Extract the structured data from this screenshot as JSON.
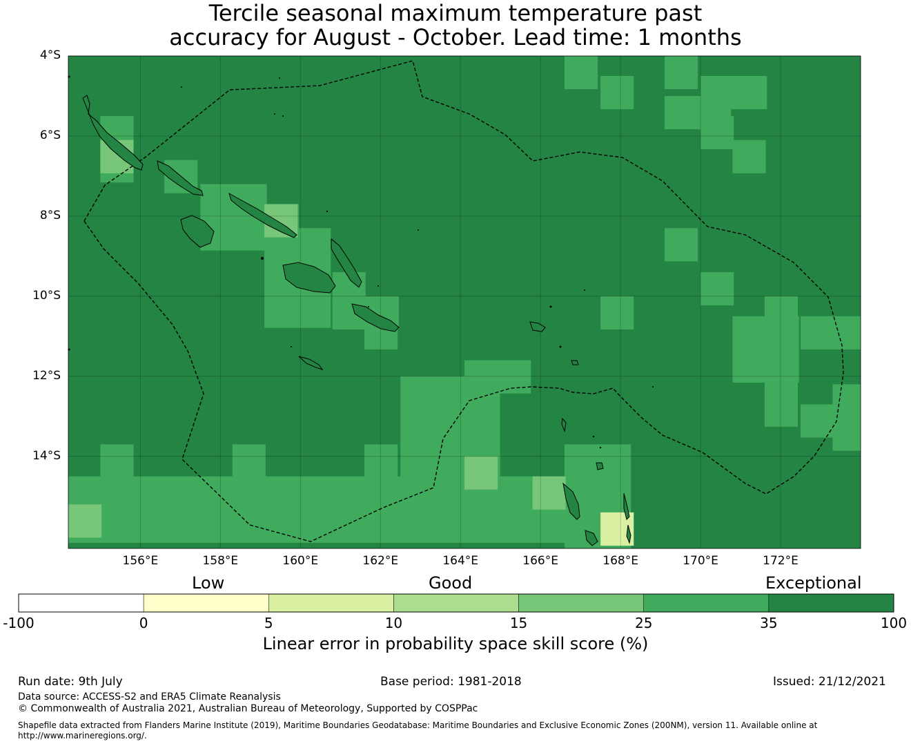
{
  "title": {
    "line1": "Tercile seasonal maximum temperature past",
    "line2": "accuracy for August - October. Lead time: 1 months"
  },
  "map": {
    "lat_labels": [
      "4°S",
      "6°S",
      "8°S",
      "10°S",
      "12°S",
      "14°S"
    ],
    "lon_labels": [
      "156°E",
      "158°E",
      "160°E",
      "162°E",
      "164°E",
      "166°E",
      "168°E",
      "170°E",
      "172°E"
    ],
    "extent": {
      "lon_min": 154.2,
      "lon_max": 174.0,
      "lat_min": -16.3,
      "lat_max": -4.0
    },
    "grid_step_deg": 2,
    "cell_size_deg": 0.83,
    "base_category": "35-100",
    "colors": {
      "-100-0": "#ffffff",
      "0-5": "#ffffcc",
      "5-10": "#d9f0a3",
      "10-15": "#addd8e",
      "15-25": "#78c679",
      "25-35": "#41ab5d",
      "35-100": "#238443"
    },
    "patches": [
      {
        "lon": 154.2,
        "lat": -14.5,
        "w": 14,
        "h": 2,
        "cat": "25-35"
      },
      {
        "lon": 155.0,
        "lat": -13.7,
        "w": 1,
        "h": 1,
        "cat": "25-35"
      },
      {
        "lon": 158.3,
        "lat": -13.7,
        "w": 1,
        "h": 1,
        "cat": "25-35"
      },
      {
        "lon": 161.6,
        "lat": -13.7,
        "w": 1,
        "h": 1,
        "cat": "25-35"
      },
      {
        "lon": 163.3,
        "lat": -13.7,
        "w": 1,
        "h": 1,
        "cat": "25-35"
      },
      {
        "lon": 162.5,
        "lat": -12.0,
        "w": 3,
        "h": 4,
        "cat": "25-35"
      },
      {
        "lon": 164.1,
        "lat": -11.6,
        "w": 2,
        "h": 1,
        "cat": "25-35"
      },
      {
        "lon": 165.8,
        "lat": -14.5,
        "w": 2,
        "h": 2,
        "cat": "25-35"
      },
      {
        "lon": 166.6,
        "lat": -13.7,
        "w": 2,
        "h": 4,
        "cat": "25-35"
      },
      {
        "lon": 155.0,
        "lat": -5.5,
        "w": 1,
        "h": 2,
        "cat": "25-35"
      },
      {
        "lon": 156.6,
        "lat": -6.6,
        "w": 1,
        "h": 1,
        "cat": "25-35"
      },
      {
        "lon": 157.5,
        "lat": -7.2,
        "w": 2,
        "h": 2,
        "cat": "25-35"
      },
      {
        "lon": 158.3,
        "lat": -7.7,
        "w": 2,
        "h": 1,
        "cat": "25-35"
      },
      {
        "lon": 159.1,
        "lat": -8.3,
        "w": 2,
        "h": 3,
        "cat": "25-35"
      },
      {
        "lon": 160.8,
        "lat": -9.4,
        "w": 1,
        "h": 1,
        "cat": "25-35"
      },
      {
        "lon": 160.8,
        "lat": -10.0,
        "w": 2,
        "h": 1,
        "cat": "25-35"
      },
      {
        "lon": 161.6,
        "lat": -10.5,
        "w": 1,
        "h": 1,
        "cat": "25-35"
      },
      {
        "lon": 166.6,
        "lat": -4.0,
        "w": 1,
        "h": 1,
        "cat": "25-35"
      },
      {
        "lon": 167.5,
        "lat": -4.5,
        "w": 1,
        "h": 1,
        "cat": "25-35"
      },
      {
        "lon": 169.1,
        "lat": -4.0,
        "w": 1,
        "h": 1,
        "cat": "25-35"
      },
      {
        "lon": 170.0,
        "lat": -4.5,
        "w": 2,
        "h": 1,
        "cat": "25-35"
      },
      {
        "lon": 169.1,
        "lat": -5.0,
        "w": 2,
        "h": 1,
        "cat": "25-35"
      },
      {
        "lon": 170.0,
        "lat": -5.5,
        "w": 1,
        "h": 1,
        "cat": "25-35"
      },
      {
        "lon": 170.8,
        "lat": -6.1,
        "w": 1,
        "h": 1,
        "cat": "25-35"
      },
      {
        "lon": 169.1,
        "lat": -8.3,
        "w": 1,
        "h": 1,
        "cat": "25-35"
      },
      {
        "lon": 170.0,
        "lat": -9.4,
        "w": 1,
        "h": 1,
        "cat": "25-35"
      },
      {
        "lon": 167.5,
        "lat": -10.0,
        "w": 1,
        "h": 1,
        "cat": "25-35"
      },
      {
        "lon": 171.6,
        "lat": -10.0,
        "w": 1,
        "h": 1,
        "cat": "25-35"
      },
      {
        "lon": 170.8,
        "lat": -10.5,
        "w": 2,
        "h": 2,
        "cat": "25-35"
      },
      {
        "lon": 172.5,
        "lat": -10.5,
        "w": 2,
        "h": 1,
        "cat": "25-35"
      },
      {
        "lon": 171.6,
        "lat": -11.6,
        "w": 1,
        "h": 2,
        "cat": "25-35"
      },
      {
        "lon": 173.3,
        "lat": -12.2,
        "w": 1,
        "h": 2,
        "cat": "25-35"
      },
      {
        "lon": 172.5,
        "lat": -12.7,
        "w": 1,
        "h": 1,
        "cat": "25-35"
      },
      {
        "lon": 155.0,
        "lat": -6.1,
        "w": 1,
        "h": 1,
        "cat": "15-25"
      },
      {
        "lon": 159.1,
        "lat": -7.7,
        "w": 1,
        "h": 1,
        "cat": "15-25"
      },
      {
        "lon": 164.1,
        "lat": -14.0,
        "w": 1,
        "h": 1,
        "cat": "15-25"
      },
      {
        "lon": 154.2,
        "lat": -15.2,
        "w": 1,
        "h": 1,
        "cat": "15-25"
      },
      {
        "lon": 165.8,
        "lat": -14.5,
        "w": 1,
        "h": 1,
        "cat": "15-25"
      },
      {
        "lon": 167.5,
        "lat": -15.4,
        "w": 1,
        "h": 1,
        "cat": "5-10"
      }
    ]
  },
  "legend": {
    "categories": [
      "Low",
      "Good",
      "Exceptional"
    ],
    "boundaries": [
      "-100",
      "0",
      "5",
      "10",
      "15",
      "25",
      "35",
      "100"
    ],
    "colors": [
      "#ffffff",
      "#ffffcc",
      "#d9f0a3",
      "#addd8e",
      "#78c679",
      "#41ab5d",
      "#238443"
    ],
    "title": "Linear error in probability space skill score (%)"
  },
  "footer": {
    "run_date": "Run date: 9th July",
    "base_period": "Base period: 1981-2018",
    "issued": "Issued: 21/12/2021",
    "data_source": "Data source: ACCESS-S2 and ERA5 Climate Reanalysis",
    "copyright": "© Commonwealth of Australia 2021, Australian Bureau of Meteorology, Supported by COSPPac",
    "shapefile": "Shapefile data extracted from Flanders Marine Institute (2019), Maritime Boundaries Geodatabase: Maritime Boundaries and Exclusive Economic Zones (200NM), version 11. Available online at http://www.marineregions.org/."
  }
}
